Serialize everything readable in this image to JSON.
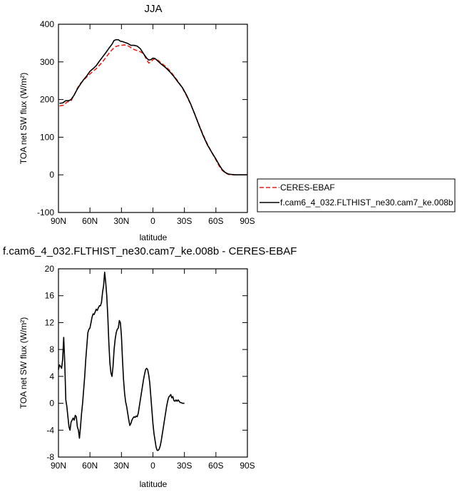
{
  "chart_data": [
    {
      "type": "line",
      "title": "JJA",
      "xlabel": "latitude",
      "ylabel": "TOA net SW flux (W/m²)",
      "xlim": [
        90,
        -90
      ],
      "ylim": [
        -100,
        400
      ],
      "xticks": [
        90,
        60,
        30,
        0,
        -30,
        -60,
        -90
      ],
      "xtick_labels": [
        "90N",
        "60N",
        "30N",
        "0",
        "30S",
        "60S",
        "90S"
      ],
      "yticks": [
        -100,
        0,
        100,
        200,
        300,
        400
      ],
      "ytick_labels": [
        "-100",
        "0",
        "100",
        "200",
        "300",
        "400"
      ],
      "legend": "outside-right-bottom",
      "series": [
        {
          "name": "CERES-EBAF",
          "color": "#e8211b",
          "style": "dashed",
          "points": [
            [
              89,
              183
            ],
            [
              85,
              185
            ],
            [
              82,
              193
            ],
            [
              78,
              197
            ],
            [
              75,
              212
            ],
            [
              72,
              230
            ],
            [
              69,
              243
            ],
            [
              66,
              252
            ],
            [
              63,
              260
            ],
            [
              60,
              268
            ],
            [
              57,
              275
            ],
            [
              54,
              282
            ],
            [
              51,
              291
            ],
            [
              48,
              300
            ],
            [
              45,
              311
            ],
            [
              42,
              322
            ],
            [
              39,
              332
            ],
            [
              36,
              340
            ],
            [
              33,
              343
            ],
            [
              30,
              344
            ],
            [
              27,
              345
            ],
            [
              24,
              343
            ],
            [
              21,
              338
            ],
            [
              18,
              333
            ],
            [
              15,
              330
            ],
            [
              12,
              327
            ],
            [
              9,
              322
            ],
            [
              6,
              306
            ],
            [
              4,
              297
            ],
            [
              2,
              300
            ],
            [
              0,
              306
            ],
            [
              -2,
              308
            ],
            [
              -4,
              306
            ],
            [
              -8,
              297
            ],
            [
              -12,
              288
            ],
            [
              -16,
              277
            ],
            [
              -20,
              263
            ],
            [
              -24,
              248
            ],
            [
              -28,
              231
            ],
            [
              -32,
              210
            ],
            [
              -36,
              187
            ],
            [
              -40,
              160
            ],
            [
              -44,
              132
            ],
            [
              -48,
              105
            ],
            [
              -52,
              81
            ],
            [
              -56,
              60
            ],
            [
              -60,
              40
            ],
            [
              -63,
              24
            ],
            [
              -66,
              12
            ],
            [
              -69,
              5
            ],
            [
              -72,
              1
            ],
            [
              -78,
              0
            ],
            [
              -84,
              0
            ],
            [
              -90,
              0
            ]
          ]
        },
        {
          "name": "f.cam6_4_032.FLTHIST_ne30.cam7_ke.008b",
          "color": "#000000",
          "style": "solid",
          "points": [
            [
              89,
              190
            ],
            [
              86,
              191
            ],
            [
              83,
              197
            ],
            [
              80,
              197
            ],
            [
              78,
              200
            ],
            [
              75,
              212
            ],
            [
              72,
              228
            ],
            [
              69,
              241
            ],
            [
              66,
              253
            ],
            [
              63,
              263
            ],
            [
              60,
              275
            ],
            [
              57,
              282
            ],
            [
              54,
              290
            ],
            [
              51,
              302
            ],
            [
              48,
              313
            ],
            [
              45,
              324
            ],
            [
              42,
              336
            ],
            [
              39,
              347
            ],
            [
              37,
              357
            ],
            [
              35,
              359
            ],
            [
              33,
              359
            ],
            [
              31,
              355
            ],
            [
              29,
              354
            ],
            [
              27,
              352
            ],
            [
              24,
              349
            ],
            [
              21,
              344
            ],
            [
              18,
              344
            ],
            [
              15,
              342
            ],
            [
              12,
              335
            ],
            [
              9,
              322
            ],
            [
              6,
              310
            ],
            [
              4,
              305
            ],
            [
              2,
              306
            ],
            [
              0,
              310
            ],
            [
              -2,
              309
            ],
            [
              -4,
              304
            ],
            [
              -8,
              294
            ],
            [
              -12,
              285
            ],
            [
              -16,
              274
            ],
            [
              -20,
              261
            ],
            [
              -24,
              246
            ],
            [
              -28,
              232
            ],
            [
              -32,
              212
            ],
            [
              -36,
              188
            ],
            [
              -40,
              160
            ],
            [
              -44,
              131
            ],
            [
              -48,
              103
            ],
            [
              -52,
              79
            ],
            [
              -56,
              60
            ],
            [
              -60,
              42
            ],
            [
              -63,
              27
            ],
            [
              -66,
              14
            ],
            [
              -69,
              6
            ],
            [
              -72,
              2
            ],
            [
              -78,
              0
            ],
            [
              -84,
              0
            ],
            [
              -90,
              0
            ]
          ]
        }
      ]
    },
    {
      "type": "line",
      "title": "f.cam6_4_032.FLTHIST_ne30.cam7_ke.008b - CERES-EBAF",
      "xlabel": "latitude",
      "ylabel": "TOA net SW flux (W/m²)",
      "xlim": [
        90,
        -90
      ],
      "ylim": [
        -8,
        20
      ],
      "xticks": [
        90,
        60,
        30,
        0,
        -30,
        -60,
        -90
      ],
      "xtick_labels": [
        "90N",
        "60N",
        "30N",
        "0",
        "30S",
        "60S",
        "90S"
      ],
      "yticks": [
        -8,
        -4,
        0,
        4,
        8,
        12,
        16,
        20
      ],
      "ytick_labels": [
        "-8",
        "-4",
        "0",
        "4",
        "8",
        "12",
        "16",
        "20"
      ],
      "legend": "none",
      "series": [
        {
          "color": "#000000",
          "style": "solid",
          "points": [
            [
              90,
              5
            ],
            [
              89,
              5.7
            ],
            [
              88,
              5.5
            ],
            [
              87,
              5.2
            ],
            [
              86,
              6.5
            ],
            [
              85,
              9.8
            ],
            [
              84,
              6
            ],
            [
              83,
              0.5
            ],
            [
              82,
              -0.5
            ],
            [
              81,
              -2
            ],
            [
              80,
              -3.5
            ],
            [
              79,
              -4
            ],
            [
              78,
              -2.8
            ],
            [
              76,
              -2.2
            ],
            [
              75,
              -2.5
            ],
            [
              74,
              -1.8
            ],
            [
              73,
              -2
            ],
            [
              72,
              -3.5
            ],
            [
              71,
              -4
            ],
            [
              70,
              -5.2
            ],
            [
              69,
              -3.5
            ],
            [
              68,
              -1.5
            ],
            [
              67,
              0
            ],
            [
              66,
              2
            ],
            [
              65,
              4
            ],
            [
              64,
              6.5
            ],
            [
              63,
              8.5
            ],
            [
              62,
              10.5
            ],
            [
              61,
              11
            ],
            [
              60,
              11.2
            ],
            [
              59,
              12
            ],
            [
              58,
              12.8
            ],
            [
              57,
              13.3
            ],
            [
              56,
              13.2
            ],
            [
              55,
              13.6
            ],
            [
              54,
              14
            ],
            [
              53,
              13.8
            ],
            [
              52,
              14.2
            ],
            [
              51,
              14.5
            ],
            [
              50,
              14.5
            ],
            [
              49,
              15
            ],
            [
              48,
              16.5
            ],
            [
              47,
              17.5
            ],
            [
              46,
              19.5
            ],
            [
              45,
              18
            ],
            [
              44,
              16
            ],
            [
              43,
              13
            ],
            [
              42,
              9
            ],
            [
              41,
              6
            ],
            [
              40,
              4.5
            ],
            [
              39,
              4
            ],
            [
              38,
              5.5
            ],
            [
              37,
              8
            ],
            [
              36,
              9.5
            ],
            [
              35,
              10.5
            ],
            [
              34,
              11
            ],
            [
              33,
              11.2
            ],
            [
              32,
              12.3
            ],
            [
              31,
              12
            ],
            [
              30,
              10
            ],
            [
              29,
              6.5
            ],
            [
              28,
              3.5
            ],
            [
              27,
              1.5
            ],
            [
              26,
              0.2
            ],
            [
              25,
              -0.5
            ],
            [
              24,
              -1.5
            ],
            [
              23,
              -2.5
            ],
            [
              22,
              -3.3
            ],
            [
              21,
              -3
            ],
            [
              20,
              -2.5
            ],
            [
              19,
              -2.2
            ],
            [
              18,
              -2
            ],
            [
              17,
              -2.1
            ],
            [
              16,
              -1.9
            ],
            [
              15,
              -2
            ],
            [
              14,
              -1.5
            ],
            [
              13,
              -0.5
            ],
            [
              12,
              0.5
            ],
            [
              11,
              1.5
            ],
            [
              10,
              2.5
            ],
            [
              9,
              3.5
            ],
            [
              8,
              4.3
            ],
            [
              7,
              5
            ],
            [
              6,
              5.2
            ],
            [
              5,
              5
            ],
            [
              4,
              4.2
            ],
            [
              3,
              3
            ],
            [
              2,
              1
            ],
            [
              1,
              -1
            ],
            [
              0,
              -3
            ],
            [
              -1,
              -4.5
            ],
            [
              -2,
              -5.5
            ],
            [
              -3,
              -6.5
            ],
            [
              -4,
              -7
            ],
            [
              -5,
              -7
            ],
            [
              -6,
              -6.8
            ],
            [
              -7,
              -6.3
            ],
            [
              -8,
              -5.5
            ],
            [
              -9,
              -4.5
            ],
            [
              -10,
              -3.5
            ],
            [
              -11,
              -2.5
            ],
            [
              -12,
              -1.5
            ],
            [
              -13,
              -0.5
            ],
            [
              -14,
              0.3
            ],
            [
              -15,
              0.9
            ],
            [
              -16,
              1.1
            ],
            [
              -17,
              1.3
            ],
            [
              -18,
              0.8
            ],
            [
              -19,
              1
            ],
            [
              -20,
              0.4
            ],
            [
              -21,
              0.3
            ],
            [
              -22,
              0.5
            ],
            [
              -23,
              0.3
            ],
            [
              -24,
              0.5
            ],
            [
              -25,
              0.3
            ],
            [
              -26,
              0.1
            ],
            [
              -27,
              0.1
            ],
            [
              -28,
              0
            ],
            [
              -29,
              0
            ],
            [
              -30,
              0
            ]
          ]
        }
      ]
    }
  ]
}
